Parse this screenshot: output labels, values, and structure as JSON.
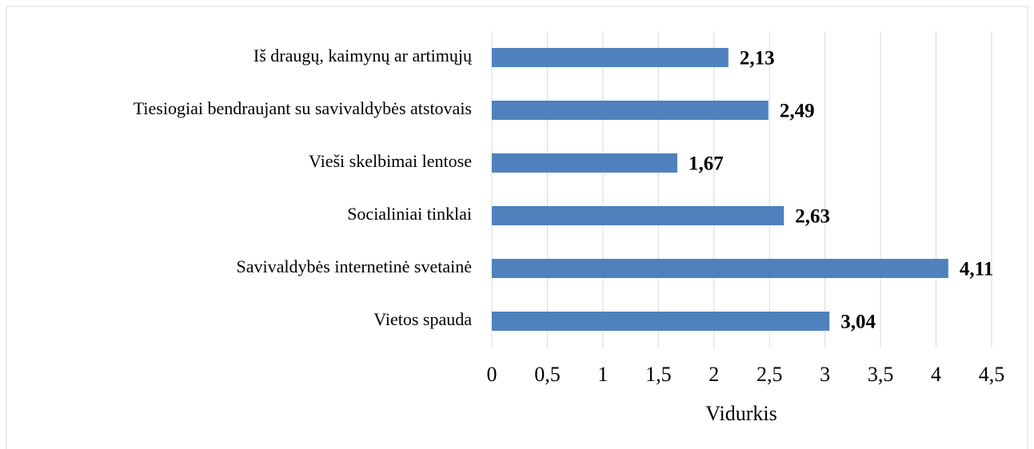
{
  "chart_data": {
    "type": "hbar",
    "categories": [
      "Iš draugų, kaimynų ar artimųjų",
      "Tiesiogiai bendraujant su savivaldybės atstovais",
      "Vieši skelbimai lentose",
      "Socialiniai tinklai",
      "Savivaldybės internetinė svetainė",
      "Vietos spauda"
    ],
    "values": [
      2.13,
      2.49,
      1.67,
      2.63,
      4.11,
      3.04
    ],
    "value_labels": [
      "2,13",
      "2,49",
      "1,67",
      "2,63",
      "4,11",
      "3,04"
    ],
    "color": "#4f81bd",
    "xlabel": "Vidurkis",
    "xlim": [
      0,
      4.5
    ],
    "xticks": [
      0,
      {
        "value": 0.5,
        "label": "0,5"
      },
      1,
      {
        "value": 1.5,
        "label": "1,5"
      },
      2,
      {
        "value": 2.5,
        "label": "2,5"
      },
      3,
      {
        "value": 3.5,
        "label": "3,5"
      },
      4,
      {
        "value": 4.5,
        "label": "4,5"
      }
    ],
    "grid": true
  }
}
